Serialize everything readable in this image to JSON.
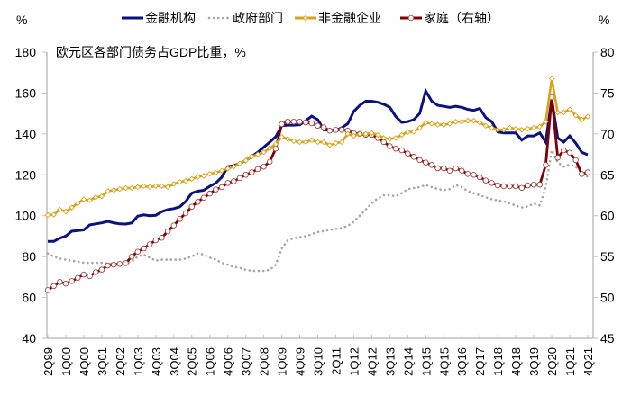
{
  "chart_data": {
    "type": "line",
    "title": "欧元区各部门债务占GDP比重，%",
    "y_left_unit": "%",
    "y_right_unit": "%",
    "y_left_lim": [
      40,
      180
    ],
    "y_left_ticks": [
      40,
      60,
      80,
      100,
      120,
      140,
      160,
      180
    ],
    "y_right_lim": [
      45,
      80
    ],
    "y_right_ticks": [
      45,
      50,
      55,
      60,
      65,
      70,
      75,
      80
    ],
    "grid": false,
    "legend_position": "top",
    "x_tick_labels": [
      "2Q99",
      "1Q00",
      "4Q00",
      "3Q01",
      "2Q02",
      "1Q03",
      "4Q03",
      "3Q04",
      "2Q05",
      "1Q06",
      "4Q06",
      "3Q07",
      "2Q08",
      "1Q09",
      "4Q09",
      "3Q10",
      "2Q11",
      "1Q12",
      "4Q12",
      "3Q13",
      "2Q14",
      "1Q15",
      "4Q15",
      "3Q16",
      "2Q17",
      "1Q18",
      "4Q18",
      "3Q19",
      "2Q20",
      "1Q21",
      "4Q21"
    ],
    "x_range": [
      "2Q99",
      "4Q21"
    ],
    "x_frequency": "quarterly",
    "series": [
      {
        "name": "金融机构",
        "axis": "left",
        "color": "#0a127f",
        "style": "solid",
        "values": [
          87.4,
          87.4,
          89,
          90,
          92.4,
          92.7,
          93,
          95.5,
          96,
          96.5,
          97.2,
          96.5,
          96,
          95.9,
          96.5,
          99.8,
          100.4,
          100,
          100.2,
          102,
          103,
          103.5,
          104.3,
          107,
          111,
          112,
          112.4,
          114.4,
          116,
          118.8,
          124,
          124.5,
          125.5,
          127,
          129,
          131,
          133.5,
          136,
          138.6,
          144,
          144.3,
          144.3,
          144.5,
          146.5,
          148.7,
          147,
          142,
          141.7,
          141.7,
          143,
          145,
          151,
          154,
          156,
          156,
          155.5,
          154.5,
          153,
          148.5,
          145.6,
          146,
          147,
          150,
          161,
          156,
          154,
          153.5,
          153,
          153.5,
          153,
          152,
          151.5,
          152.5,
          148,
          146,
          141,
          140.5,
          140.5,
          140.5,
          137,
          139,
          139,
          140.5,
          136,
          157,
          138,
          136,
          139,
          135.5,
          131,
          129.8
        ]
      },
      {
        "name": "政府部门",
        "axis": "left",
        "color": "#a6a6a6",
        "style": "dotted",
        "values": [
          81.5,
          80,
          79,
          78.5,
          78,
          77.5,
          77,
          77,
          77,
          77,
          76.5,
          76.5,
          76.5,
          77,
          77.5,
          80,
          81,
          79.5,
          78,
          78.5,
          78.5,
          78.5,
          78.5,
          79,
          80,
          81.5,
          81,
          79.5,
          78.5,
          77,
          76,
          75,
          74.5,
          73.5,
          73,
          73,
          73,
          73.5,
          76,
          84,
          88,
          89,
          89.5,
          90,
          91,
          92,
          92.5,
          93,
          93.5,
          94,
          95,
          97,
          100,
          103,
          106,
          108.5,
          110,
          110,
          109.5,
          111,
          113,
          113.5,
          114,
          115,
          114,
          113,
          112.5,
          113,
          115,
          114,
          112,
          111,
          110,
          109,
          108,
          107.5,
          107,
          106,
          105,
          104,
          104.5,
          106,
          105,
          114,
          132,
          126,
          124,
          125,
          124,
          121,
          119
        ]
      },
      {
        "name": "非金融企业",
        "axis": "left",
        "color": "#d9a21b",
        "style": "solid-diamond",
        "values": [
          100.3,
          100.5,
          103,
          102,
          104,
          106,
          108,
          107.5,
          109,
          109.5,
          112,
          112.5,
          113,
          113.5,
          113.5,
          114,
          114.5,
          114,
          114.5,
          114.5,
          114,
          115.5,
          116.5,
          117,
          118,
          119,
          119.5,
          120.5,
          121,
          122,
          123,
          124,
          125.5,
          127,
          129,
          130,
          131,
          133,
          135,
          138.5,
          137.5,
          136.5,
          136,
          136,
          137,
          136,
          136,
          134.5,
          135.5,
          136,
          140,
          139,
          140,
          140,
          140.5,
          139.5,
          138,
          137.5,
          138,
          139.5,
          141,
          141,
          143,
          145.5,
          145,
          144.5,
          144.5,
          145,
          146,
          146,
          146.5,
          146.5,
          145.5,
          144,
          143,
          142,
          142,
          143,
          142.5,
          142,
          142.5,
          143,
          143.5,
          146,
          167,
          150.5,
          150.5,
          152,
          149,
          147,
          148.5
        ]
      },
      {
        "name": "家庭（右轴）",
        "axis": "right",
        "color": "#800000",
        "style": "solid-circle",
        "values": [
          50.9,
          51.4,
          51.9,
          51.7,
          52.0,
          52.4,
          52.8,
          52.6,
          53.1,
          53.4,
          53.9,
          54.0,
          54.1,
          54.2,
          55.0,
          55.6,
          56.0,
          56.5,
          57.0,
          57.3,
          58.1,
          58.8,
          59.6,
          60.3,
          61.1,
          61.7,
          62.2,
          62.7,
          63.2,
          63.5,
          64.0,
          64.2,
          64.6,
          65.0,
          65.3,
          65.7,
          66.0,
          66.6,
          68.2,
          71.2,
          71.5,
          71.5,
          71.5,
          71.4,
          71.3,
          71.0,
          70.8,
          70.4,
          70.5,
          70.5,
          70.4,
          70.1,
          70.0,
          69.9,
          69.9,
          69.5,
          69.0,
          68.5,
          68.2,
          68.0,
          67.6,
          67.2,
          66.8,
          66.5,
          66.2,
          65.8,
          65.8,
          65.5,
          65.8,
          65.5,
          65.1,
          65.0,
          64.7,
          64.3,
          64.0,
          63.7,
          63.6,
          63.6,
          63.6,
          63.4,
          63.7,
          63.8,
          63.8,
          66.2,
          74.5,
          67.1,
          68.0,
          67.7,
          66.8,
          65.1,
          65.3
        ]
      }
    ]
  }
}
